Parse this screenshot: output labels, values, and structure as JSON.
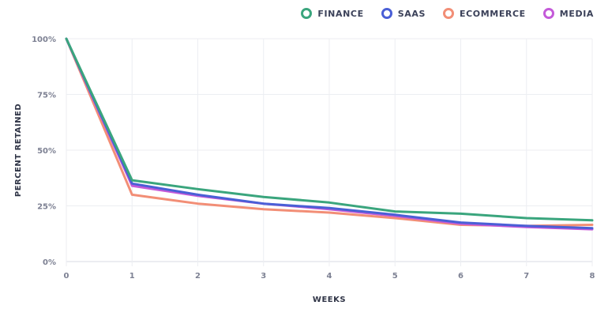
{
  "legend": [
    {
      "label": "FINANCE",
      "color": "#3aa57d"
    },
    {
      "label": "SAAS",
      "color": "#4a5fd6"
    },
    {
      "label": "ECOMMERCE",
      "color": "#f28e76"
    },
    {
      "label": "MEDIA",
      "color": "#c45ad9"
    }
  ],
  "chart_data": {
    "type": "line",
    "xlabel": "WEEKS",
    "ylabel": "PERCENT RETAINED",
    "x": [
      0,
      1,
      2,
      3,
      4,
      5,
      6,
      7,
      8
    ],
    "x_tick_labels": [
      "0",
      "1",
      "2",
      "3",
      "4",
      "5",
      "6",
      "7",
      "8"
    ],
    "y_tick_labels": [
      "0%",
      "25%",
      "50%",
      "75%",
      "100%"
    ],
    "y_ticks": [
      0,
      25,
      50,
      75,
      100
    ],
    "xlim": [
      0,
      8
    ],
    "ylim": [
      0,
      100
    ],
    "grid": true,
    "legend_position": "top-right",
    "series": [
      {
        "name": "FINANCE",
        "color": "#3aa57d",
        "values": [
          100,
          36.5,
          32.5,
          29,
          26.5,
          22.5,
          21.5,
          19.5,
          18.5
        ]
      },
      {
        "name": "SAAS",
        "color": "#4a5fd6",
        "values": [
          100,
          35,
          30,
          26,
          24,
          21,
          17.5,
          16,
          15
        ]
      },
      {
        "name": "ECOMMERCE",
        "color": "#f28e76",
        "values": [
          100,
          30,
          26,
          23.5,
          22,
          19.5,
          16.5,
          16,
          16.5
        ]
      },
      {
        "name": "MEDIA",
        "color": "#c45ad9",
        "values": [
          100,
          34,
          29.5,
          26,
          23.5,
          20.5,
          17,
          15.5,
          14.5
        ]
      }
    ]
  }
}
